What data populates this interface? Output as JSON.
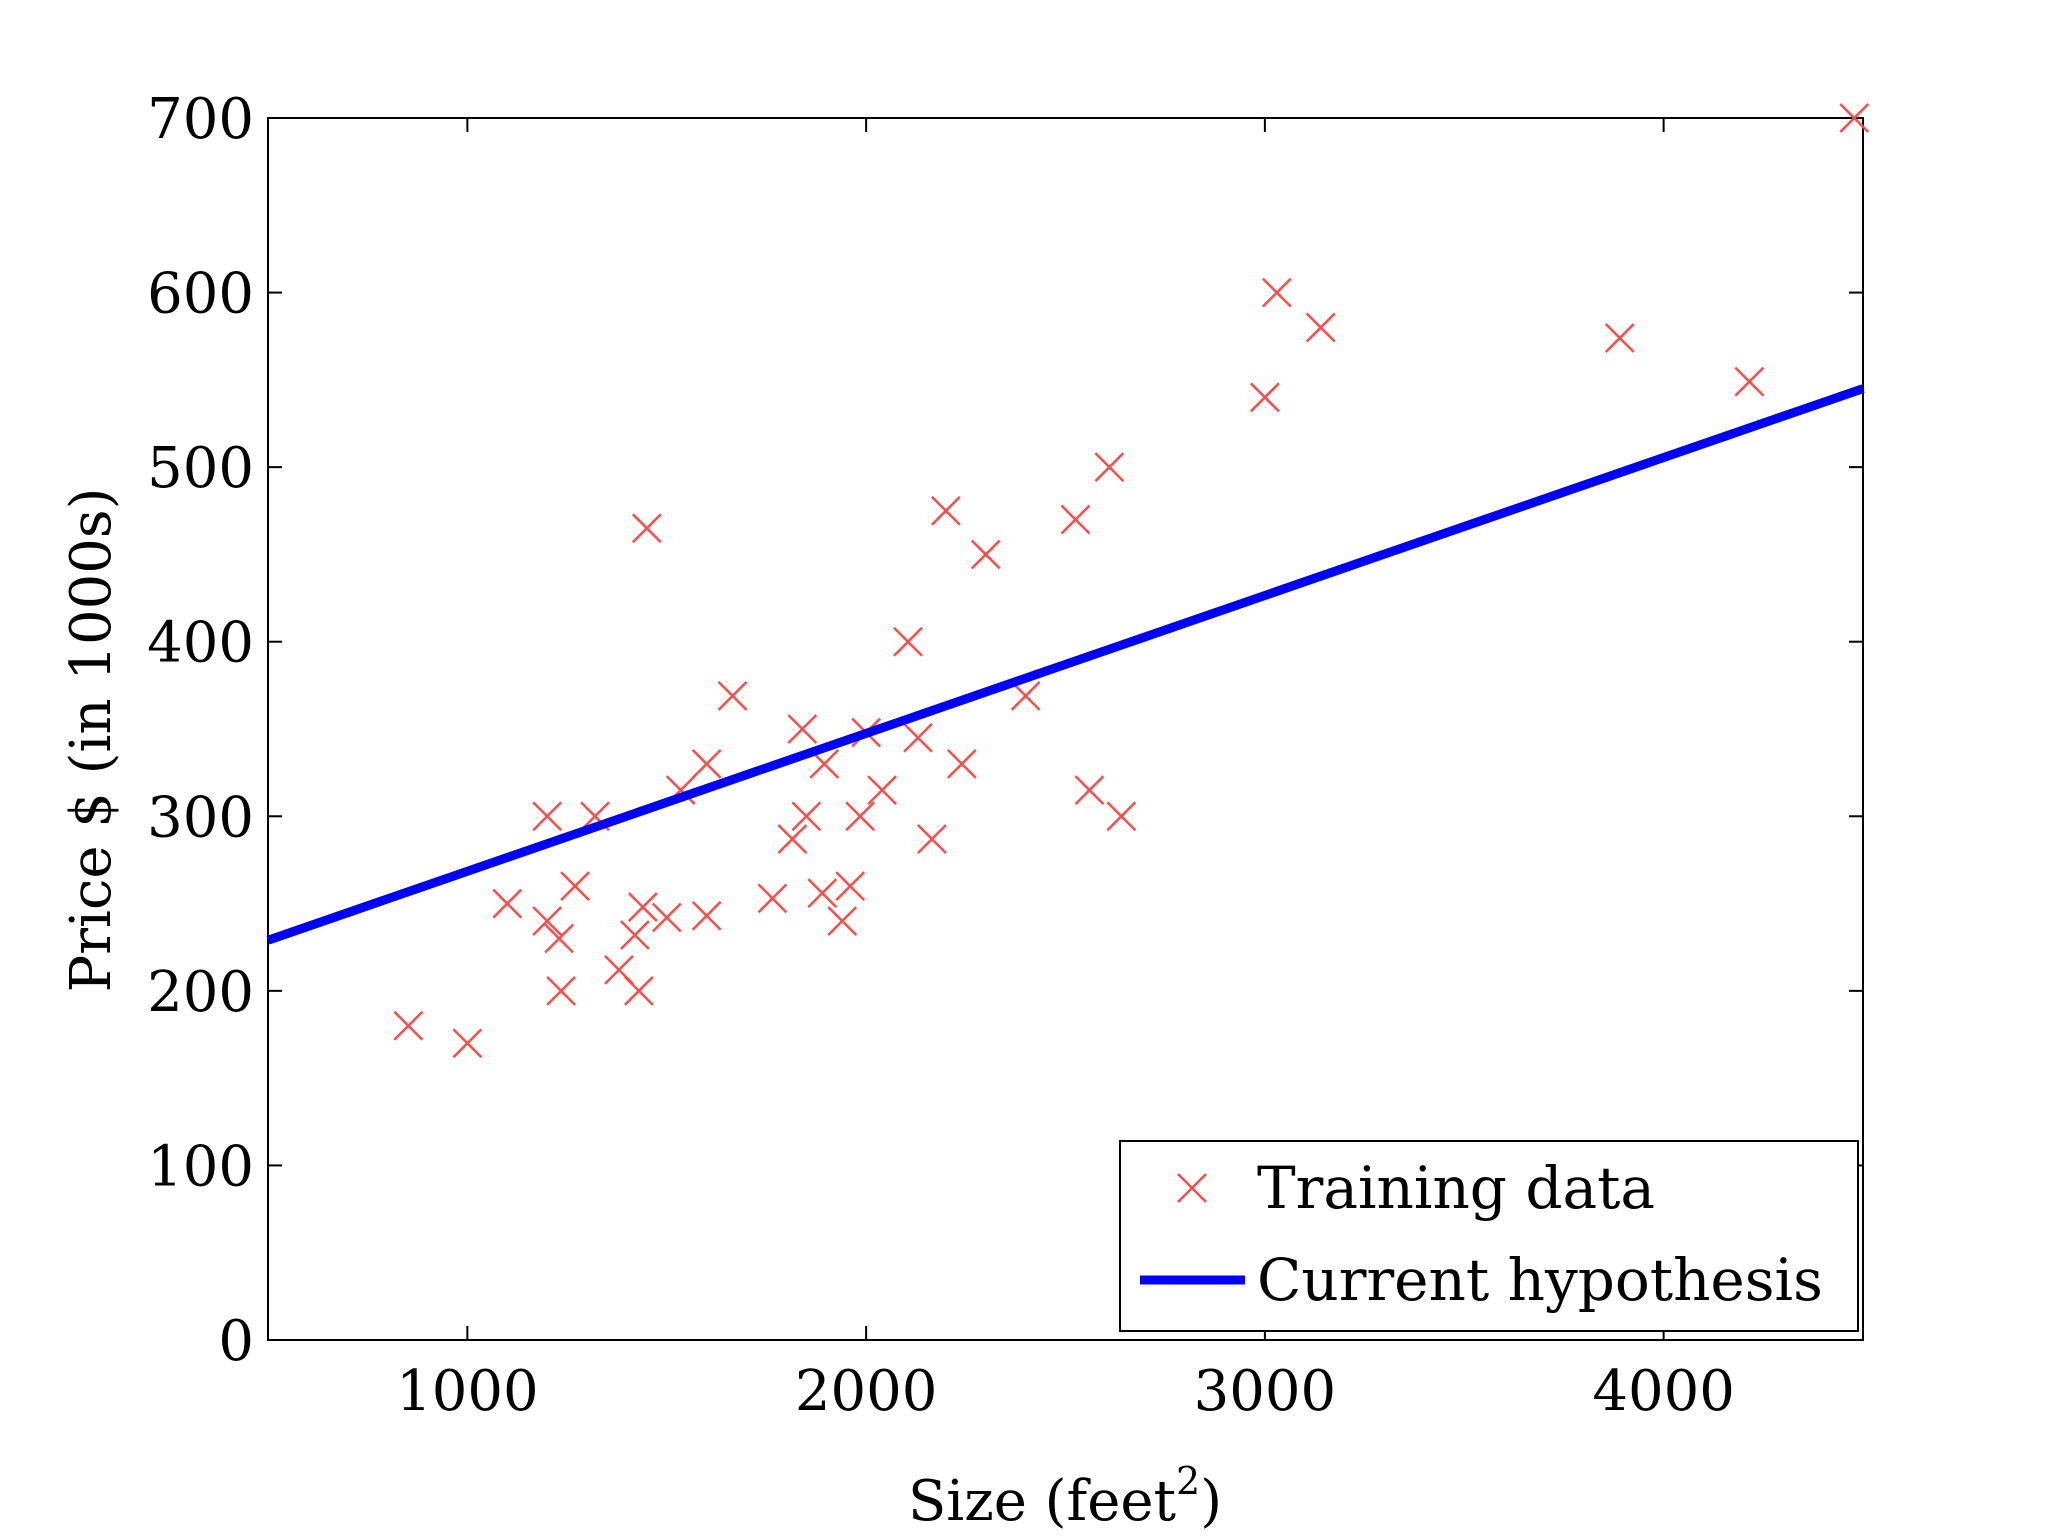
{
  "chart_data": {
    "type": "scatter",
    "title": "",
    "xlabel": "Size (feet",
    "xlabel_sup": "2",
    "xlabel_end": ")",
    "ylabel": "Price $ (in 1000s)",
    "xlim": [
      500,
      4500
    ],
    "ylim": [
      0,
      700
    ],
    "xticks": [
      1000,
      2000,
      3000,
      4000
    ],
    "yticks": [
      0,
      100,
      200,
      300,
      400,
      500,
      600,
      700
    ],
    "grid": false,
    "legend_position": "bottom-right",
    "series": [
      {
        "name": "Training data",
        "kind": "scatter",
        "marker": "x",
        "color": "#ff4a4a",
        "points": [
          [
            852,
            180
          ],
          [
            1000,
            170
          ],
          [
            1100,
            250
          ],
          [
            1200,
            300
          ],
          [
            1200,
            240
          ],
          [
            1230,
            230
          ],
          [
            1235,
            200
          ],
          [
            1270,
            260
          ],
          [
            1320,
            300
          ],
          [
            1380,
            212
          ],
          [
            1420,
            232
          ],
          [
            1430,
            200
          ],
          [
            1440,
            248
          ],
          [
            1450,
            465
          ],
          [
            1500,
            242
          ],
          [
            1535,
            315
          ],
          [
            1600,
            330
          ],
          [
            1600,
            243
          ],
          [
            1665,
            369
          ],
          [
            1765,
            253
          ],
          [
            1815,
            287
          ],
          [
            1840,
            350
          ],
          [
            1850,
            300
          ],
          [
            1890,
            256
          ],
          [
            1895,
            330
          ],
          [
            1940,
            240
          ],
          [
            1960,
            260
          ],
          [
            1985,
            300
          ],
          [
            2000,
            348
          ],
          [
            2040,
            315
          ],
          [
            2105,
            400
          ],
          [
            2130,
            345
          ],
          [
            2165,
            287
          ],
          [
            2200,
            475
          ],
          [
            2240,
            330
          ],
          [
            2300,
            450
          ],
          [
            2400,
            369
          ],
          [
            2525,
            470
          ],
          [
            2560,
            315
          ],
          [
            2610,
            500
          ],
          [
            2640,
            300
          ],
          [
            3000,
            540
          ],
          [
            3030,
            600
          ],
          [
            3140,
            580
          ],
          [
            3890,
            574
          ],
          [
            4215,
            549
          ],
          [
            4478,
            700
          ]
        ]
      },
      {
        "name": "Current hypothesis",
        "kind": "line",
        "color": "#0000ff",
        "x": [
          500,
          4500
        ],
        "y": [
          229,
          545
        ]
      }
    ]
  }
}
